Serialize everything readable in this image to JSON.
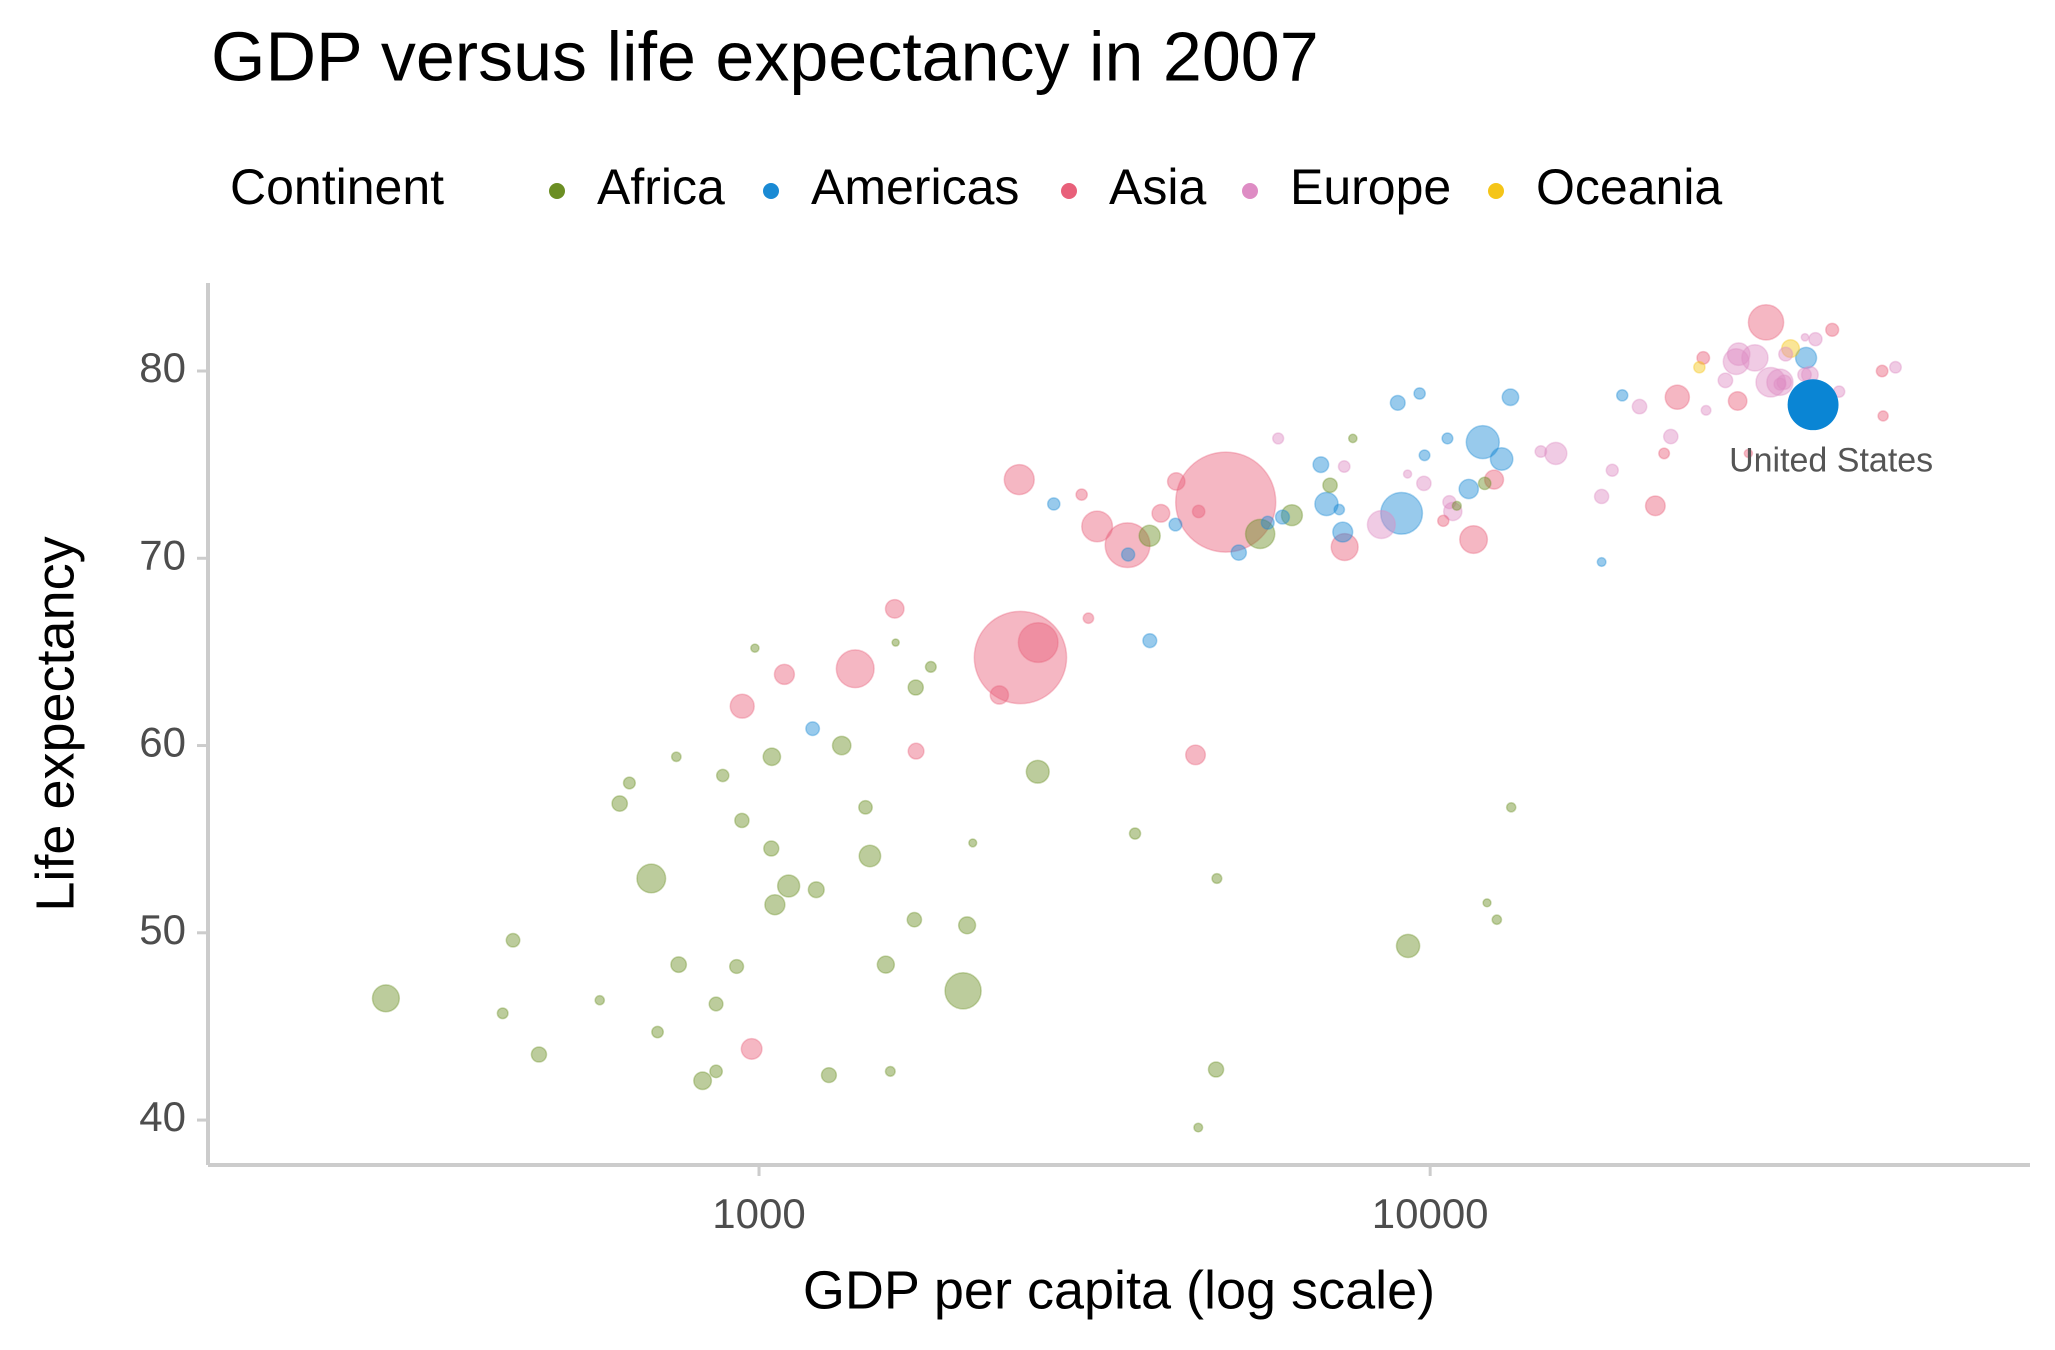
{
  "chart_data": {
    "type": "scatter",
    "title": "GDP versus life expectancy in 2007",
    "x_label": "GDP per capita (log scale)",
    "y_label": "Life expectancy",
    "legend_title": "Continent",
    "x_scale": "log",
    "xlim": [
      151,
      78300
    ],
    "ylim": [
      37.6,
      84.7
    ],
    "xticks": [
      1000,
      10000
    ],
    "yticks": [
      40,
      50,
      60,
      70,
      80
    ],
    "series": [
      {
        "name": "Africa",
        "color": "#6b8e23",
        "x": [
          6223,
          4797,
          1441,
          12570,
          1217,
          430,
          2042,
          706,
          1704,
          986,
          278,
          3633,
          1545,
          2082,
          5581,
          12154,
          641,
          691,
          13206,
          753,
          1328,
          943,
          579,
          1463,
          1569,
          415,
          12057,
          1045,
          759,
          1043,
          1803,
          10957,
          3820,
          824,
          4811,
          620,
          2014,
          7670,
          863,
          1598,
          1712,
          863,
          926,
          9270,
          2602,
          4513,
          1107,
          883,
          7093,
          1056,
          1271,
          470
        ],
        "values": [
          72.3,
          42.7,
          56.7,
          50.7,
          52.3,
          49.6,
          50.4,
          44.7,
          50.7,
          65.2,
          46.5,
          55.3,
          48.3,
          54.8,
          71.3,
          51.6,
          58.0,
          52.9,
          56.7,
          59.4,
          60.0,
          56.0,
          46.4,
          54.1,
          42.6,
          45.7,
          74.0,
          59.4,
          48.3,
          54.5,
          64.2,
          72.8,
          71.2,
          42.1,
          52.9,
          56.9,
          46.9,
          76.4,
          46.2,
          65.5,
          63.1,
          42.6,
          48.2,
          49.3,
          58.6,
          39.6,
          52.5,
          58.4,
          73.9,
          51.5,
          42.4,
          43.5
        ],
        "sizes": [
          33.3,
          12.4,
          8.1,
          1.6,
          14.3,
          8.4,
          17.7,
          4.4,
          10.2,
          0.7,
          64.6,
          3.8,
          18.0,
          0.5,
          80.3,
          0.55,
          4.9,
          76.5,
          1.45,
          1.7,
          22.9,
          9.9,
          1.5,
          35.6,
          2.0,
          3.2,
          6.0,
          19.2,
          13.3,
          12.0,
          3.3,
          1.25,
          33.8,
          20.0,
          2.1,
          12.9,
          135.0,
          0.8,
          8.9,
          0.2,
          12.3,
          6.1,
          9.1,
          44.0,
          42.3,
          1.1,
          38.1,
          5.7,
          10.3,
          29.2,
          11.7,
          12.3
        ]
      },
      {
        "name": "Americas",
        "color": "#1a8ad4",
        "x": [
          12779,
          3822,
          9066,
          36319,
          13172,
          7007,
          9645,
          8948,
          6025,
          6873,
          5728,
          5186,
          1202,
          3548,
          7321,
          11978,
          2749,
          9809,
          4173,
          7409,
          19329,
          18009,
          10611,
          11416
        ],
        "values": [
          75.3,
          65.6,
          72.4,
          80.7,
          78.6,
          72.9,
          78.8,
          78.3,
          72.2,
          75.0,
          71.9,
          70.3,
          60.9,
          70.2,
          72.6,
          76.2,
          72.9,
          75.5,
          71.8,
          71.4,
          78.7,
          69.8,
          76.4,
          73.7
        ],
        "sizes": [
          40.3,
          9.1,
          190.0,
          33.4,
          16.3,
          44.2,
          4.1,
          11.4,
          9.3,
          13.8,
          6.9,
          12.6,
          8.5,
          7.5,
          2.8,
          108.7,
          5.7,
          3.2,
          6.7,
          28.7,
          3.9,
          1.06,
          3.4,
          26.1
        ]
      },
      {
        "name": "Asia",
        "color": "#e8607a",
        "x": [
          975,
          29796,
          1391,
          1714,
          4959,
          39725,
          2452,
          3541,
          11606,
          4471,
          25523,
          31656,
          4519,
          1593,
          23348,
          47307,
          10461,
          12452,
          3096,
          944,
          1091,
          22316,
          2606,
          3190,
          21655,
          47143,
          3970,
          4185,
          28718,
          7458,
          2442,
          3025,
          2281
        ],
        "values": [
          43.8,
          75.6,
          64.1,
          59.7,
          73.0,
          82.2,
          64.7,
          70.7,
          71.0,
          59.5,
          80.7,
          82.6,
          72.5,
          67.3,
          78.6,
          77.6,
          72.0,
          74.2,
          66.8,
          62.1,
          63.8,
          75.6,
          65.5,
          71.7,
          72.8,
          80.0,
          72.4,
          74.1,
          78.4,
          70.6,
          74.2,
          73.4,
          62.7
        ],
        "sizes": [
          31.9,
          0.7,
          150.4,
          14.1,
          1318.7,
          6.98,
          1110.4,
          223.5,
          69.5,
          27.5,
          6.4,
          127.5,
          6.05,
          23.3,
          49.0,
          2.5,
          3.9,
          24.8,
          2.9,
          47.8,
          28.9,
          3.2,
          169.3,
          91.1,
          27.6,
          4.55,
          20.4,
          19.3,
          23.2,
          65.1,
          85.3,
          4.0,
          22.2
        ]
      },
      {
        "name": "Europe",
        "color": "#de8cc4",
        "x": [
          5937,
          36126,
          33693,
          7446,
          10681,
          14619,
          22833,
          35278,
          33207,
          30470,
          32170,
          27538,
          18009,
          36181,
          40676,
          28570,
          9254,
          36798,
          49357,
          15390,
          20510,
          10808,
          9787,
          18678,
          25768,
          28821,
          33860,
          37506,
          8458,
          33203
        ],
        "values": [
          76.4,
          79.8,
          79.4,
          74.9,
          73.0,
          75.7,
          76.5,
          78.3,
          79.3,
          80.7,
          79.4,
          79.5,
          73.3,
          81.8,
          78.9,
          80.5,
          74.5,
          79.8,
          80.2,
          75.6,
          78.1,
          72.5,
          74.0,
          74.7,
          77.9,
          80.9,
          80.9,
          81.7,
          71.8,
          79.4
        ],
        "sizes": [
          3.6,
          8.2,
          10.4,
          4.55,
          7.3,
          4.5,
          10.2,
          5.5,
          5.2,
          61.1,
          82.4,
          10.7,
          9.96,
          0.3,
          4.1,
          58.1,
          0.68,
          16.6,
          4.6,
          38.5,
          10.6,
          22.3,
          10.2,
          5.4,
          2.0,
          40.4,
          9.0,
          7.6,
          71.2,
          60.8
        ]
      },
      {
        "name": "Oceania",
        "color": "#f5c518",
        "x": [
          34435,
          25185
        ],
        "values": [
          81.2,
          80.2
        ],
        "sizes": [
          20.4,
          4.1
        ]
      }
    ],
    "highlight": {
      "label": "United States",
      "x": 37200,
      "y": 78.2,
      "size": 301.1,
      "color": "#0a85d4"
    }
  }
}
